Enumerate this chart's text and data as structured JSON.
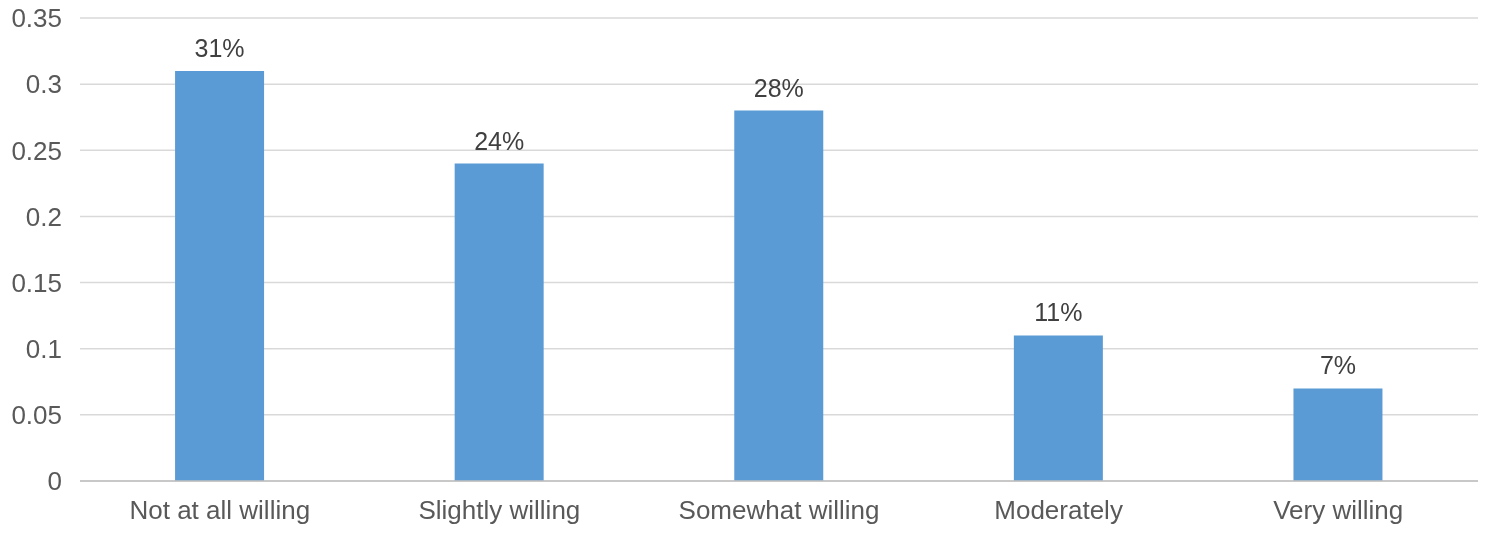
{
  "chart_data": {
    "type": "bar",
    "categories": [
      "Not at all willing",
      "Slightly willing",
      "Somewhat willing",
      "Moderately",
      "Very willing"
    ],
    "values": [
      0.31,
      0.24,
      0.28,
      0.11,
      0.07
    ],
    "value_labels": [
      "31%",
      "24%",
      "28%",
      "11%",
      "7%"
    ],
    "color": "#5b9bd5",
    "ylim": [
      0,
      0.35
    ],
    "yticks": [
      0,
      0.05,
      0.1,
      0.15,
      0.2,
      0.25,
      0.3,
      0.35
    ],
    "grid": "y"
  }
}
